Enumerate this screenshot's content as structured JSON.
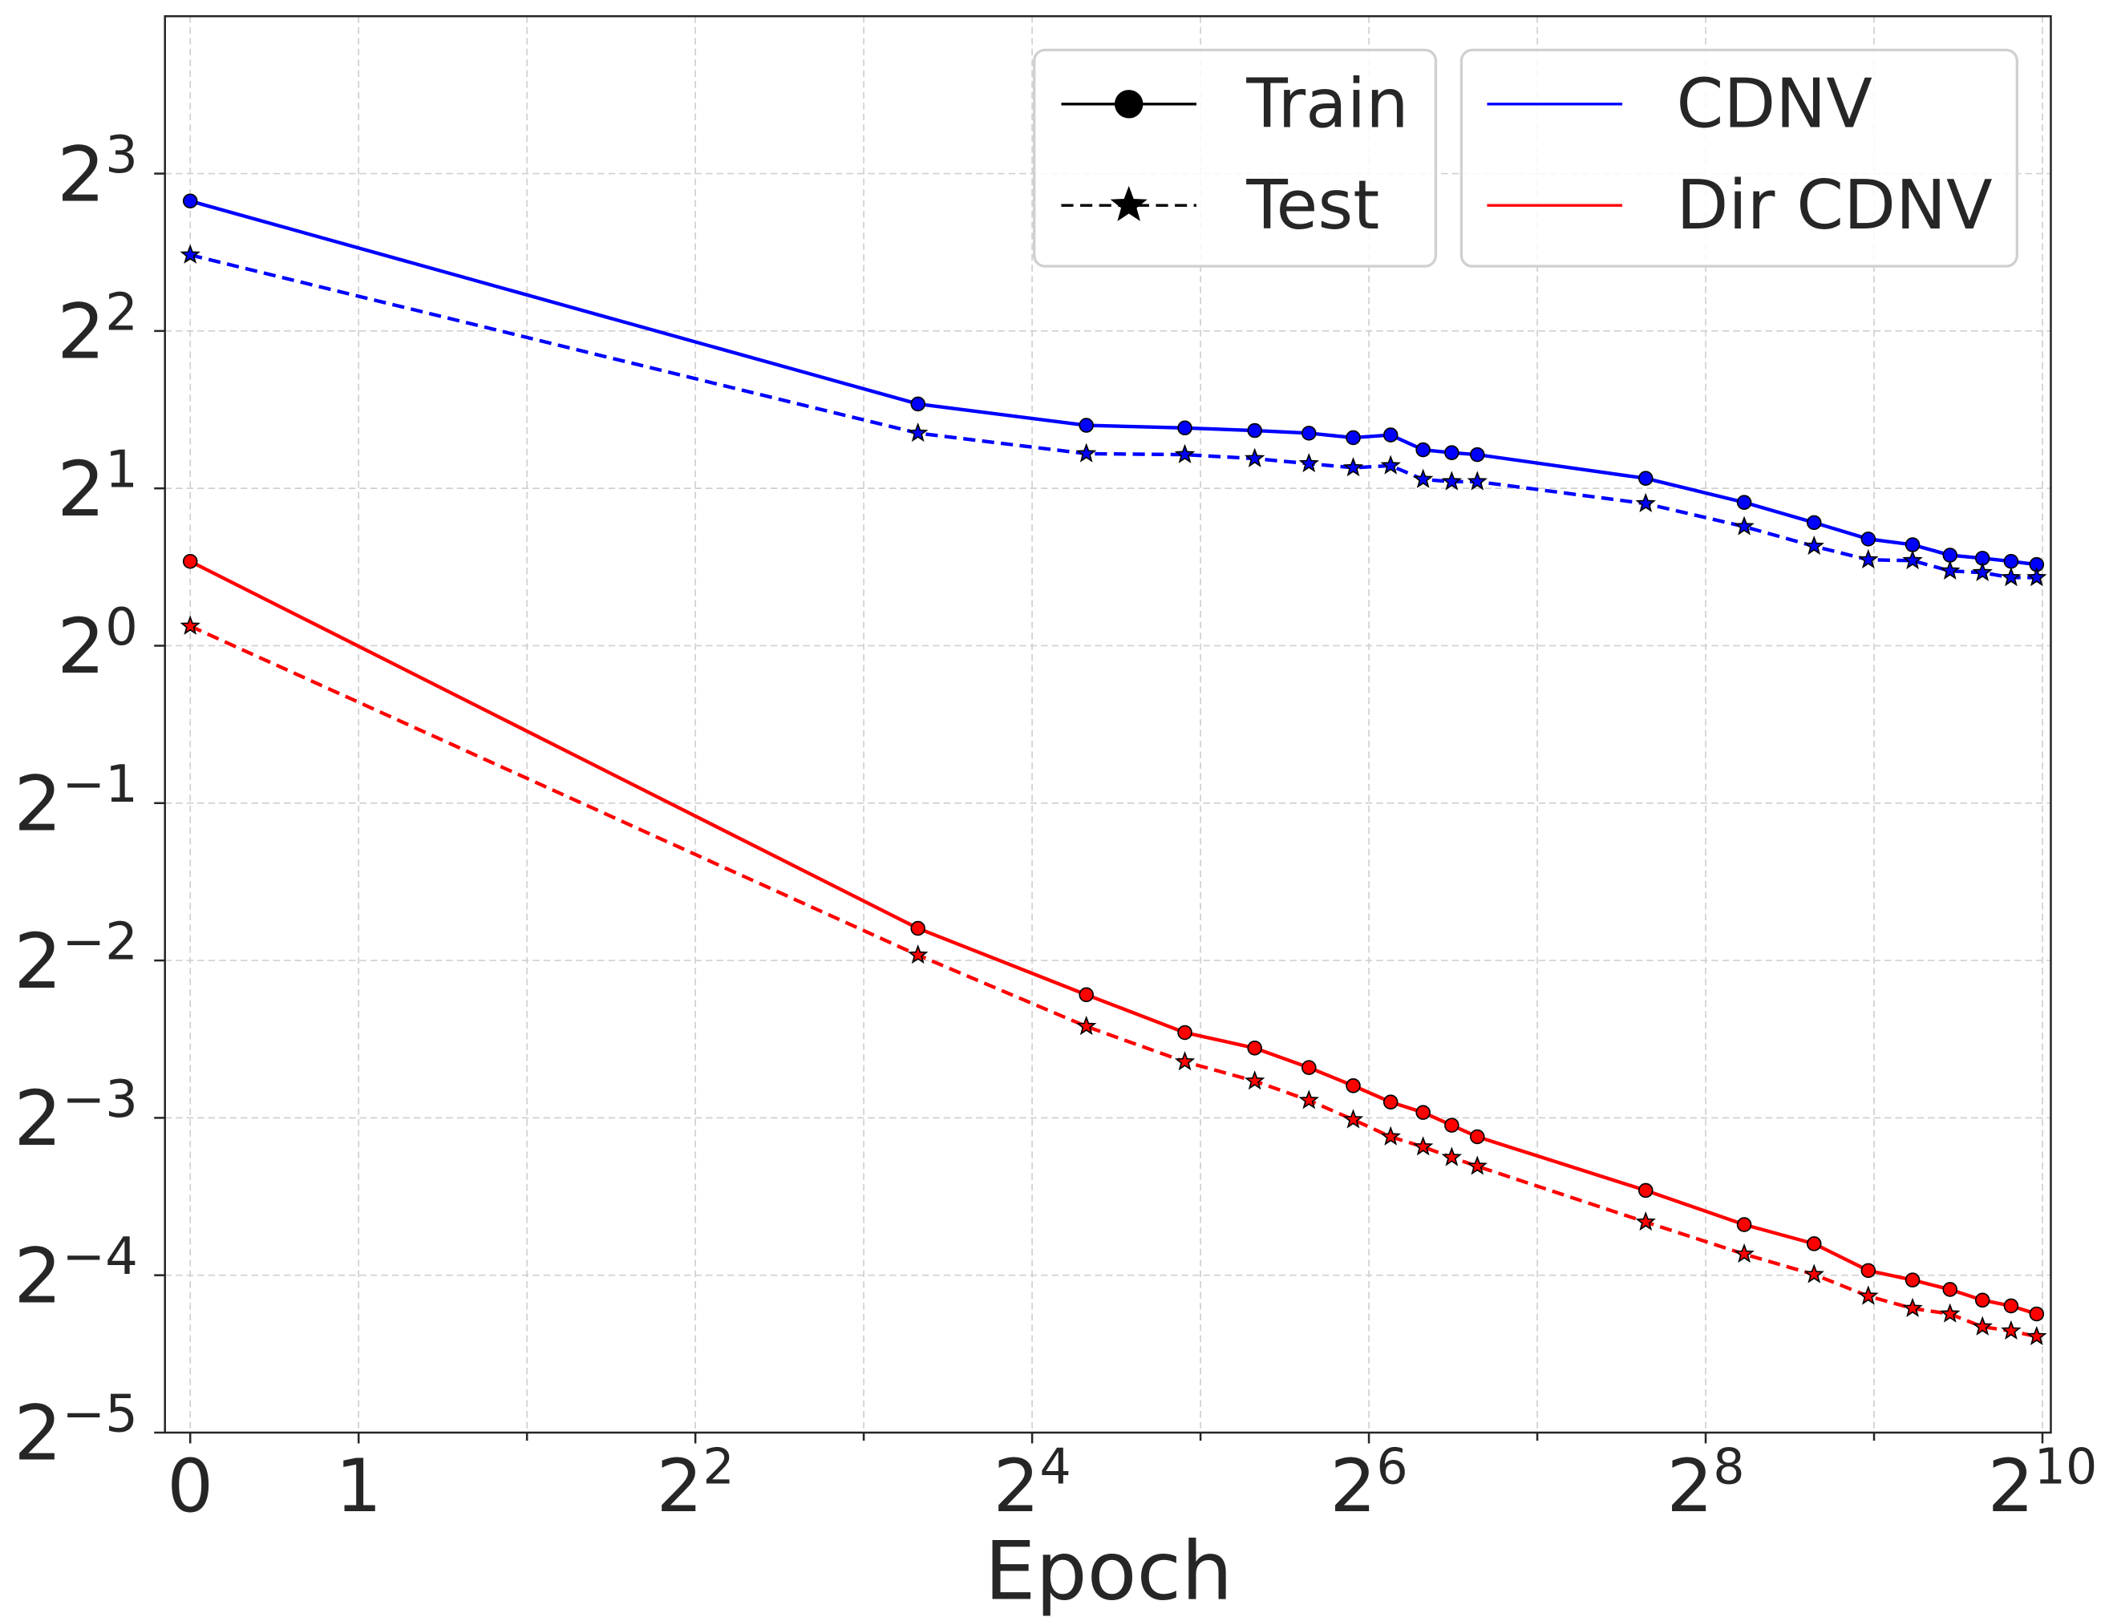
{
  "chart_data": {
    "type": "line",
    "x_label": "Epoch",
    "x_scale": "symlog2",
    "y_scale": "log2",
    "grid": true,
    "xlim": [
      -0.15,
      1060
    ],
    "ylim": [
      0.03125,
      16
    ],
    "xticks": [
      0,
      1,
      {
        "value": 4,
        "label": "2^2"
      },
      {
        "value": 16,
        "label": "2^4"
      },
      {
        "value": 64,
        "label": "2^6"
      },
      {
        "value": 256,
        "label": "2^8"
      },
      {
        "value": 1024,
        "label": "2^10"
      }
    ],
    "xminorticks": [
      2,
      8,
      32,
      128,
      512
    ],
    "yticks": [
      {
        "value": 0.03125,
        "label": "2^−5"
      },
      {
        "value": 0.0625,
        "label": "2^−4"
      },
      {
        "value": 0.125,
        "label": "2^−3"
      },
      {
        "value": 0.25,
        "label": "2^−2"
      },
      {
        "value": 0.5,
        "label": "2^−1"
      },
      {
        "value": 1,
        "label": "2^0"
      },
      {
        "value": 2,
        "label": "2^1"
      },
      {
        "value": 4,
        "label": "2^2"
      },
      {
        "value": 8,
        "label": "2^3"
      }
    ],
    "x": [
      0,
      10,
      20,
      30,
      40,
      50,
      60,
      70,
      80,
      90,
      100,
      200,
      300,
      400,
      500,
      600,
      700,
      800,
      900,
      1000
    ],
    "styles": [
      {
        "name": "Train",
        "marker": "circle",
        "dash": "solid"
      },
      {
        "name": "Test",
        "marker": "star",
        "dash": "dashed"
      }
    ],
    "series": [
      {
        "name": "CDNV",
        "color": "#0000ff",
        "train": [
          7.09,
          2.9,
          2.64,
          2.61,
          2.58,
          2.55,
          2.5,
          2.53,
          2.37,
          2.34,
          2.32,
          2.09,
          1.88,
          1.72,
          1.6,
          1.56,
          1.49,
          1.47,
          1.45,
          1.43
        ],
        "test": [
          5.59,
          2.55,
          2.33,
          2.32,
          2.28,
          2.23,
          2.19,
          2.21,
          2.08,
          2.06,
          2.06,
          1.87,
          1.69,
          1.55,
          1.46,
          1.455,
          1.39,
          1.38,
          1.35,
          1.35
        ]
      },
      {
        "name": "Dir CDNV",
        "color": "#ff0000",
        "train": [
          1.45,
          0.288,
          0.215,
          0.182,
          0.17,
          0.156,
          0.144,
          0.134,
          0.128,
          0.121,
          0.115,
          0.0908,
          0.0781,
          0.0718,
          0.0638,
          0.0612,
          0.0587,
          0.056,
          0.0546,
          0.0527
        ],
        "test": [
          1.09,
          0.256,
          0.187,
          0.16,
          0.147,
          0.135,
          0.124,
          0.115,
          0.11,
          0.105,
          0.101,
          0.079,
          0.0686,
          0.0627,
          0.057,
          0.054,
          0.0527,
          0.0498,
          0.0489,
          0.0477
        ]
      }
    ]
  }
}
